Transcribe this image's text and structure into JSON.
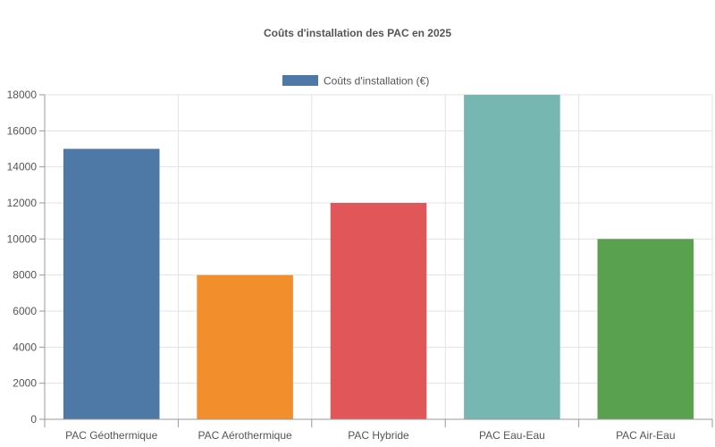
{
  "chart_data": {
    "type": "bar",
    "title": "Coûts d'installation des PAC en 2025",
    "xlabel": "",
    "ylabel": "",
    "categories": [
      "PAC Géothermique",
      "PAC Aérothermique",
      "PAC Hybride",
      "PAC Eau-Eau",
      "PAC Air-Eau"
    ],
    "series": [
      {
        "name": "Coûts d'installation (€)",
        "values": [
          15000,
          8000,
          12000,
          18000,
          10000
        ],
        "colors": [
          "#4e79a7",
          "#f28e2b",
          "#e15759",
          "#76b7b2",
          "#59a14f"
        ]
      }
    ],
    "ylim": [
      0,
      18000
    ],
    "yticks": [
      "0",
      "2000",
      "4000",
      "6000",
      "8000",
      "10000",
      "12000",
      "14000",
      "16000",
      "18000"
    ],
    "grid": true,
    "legend_position": "top-center"
  }
}
